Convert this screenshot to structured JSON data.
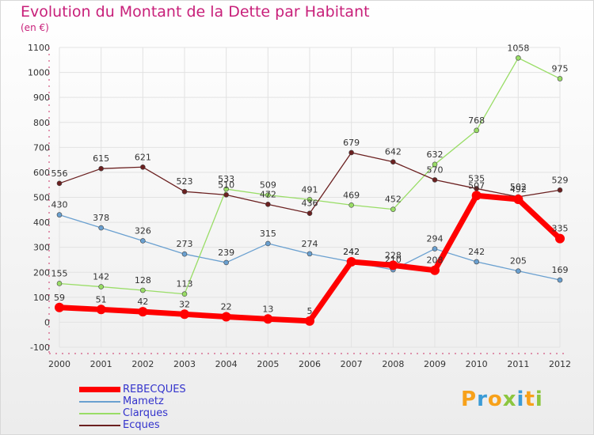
{
  "title": "Evolution du Montant de la Dette par Habitant",
  "subtitle": "(en €)",
  "logo_text": "Proxiti",
  "chart_data": {
    "type": "line",
    "title": "Evolution du Montant de la Dette par Habitant",
    "ylabel": "(en €)",
    "xlabel": "",
    "categories": [
      "2000",
      "2001",
      "2002",
      "2003",
      "2004",
      "2005",
      "2006",
      "2007",
      "2008",
      "2009",
      "2010",
      "2011",
      "2012"
    ],
    "ylim": [
      -100,
      1100
    ],
    "yticks": [
      -100,
      0,
      100,
      200,
      300,
      400,
      500,
      600,
      700,
      800,
      900,
      1000,
      1100
    ],
    "grid": true,
    "legend_position": "bottom-left",
    "series": [
      {
        "name": "REBECQUES",
        "color": "#ff0000",
        "values": [
          59,
          51,
          42,
          32,
          22,
          13,
          5,
          242,
          228,
          208,
          507,
          492,
          335
        ]
      },
      {
        "name": "Mametz",
        "color": "#6aa0d0",
        "values": [
          430,
          378,
          326,
          273,
          239,
          315,
          274,
          242,
          210,
          294,
          242,
          205,
          169
        ]
      },
      {
        "name": "Clarques",
        "color": "#99dd66",
        "values": [
          155,
          142,
          128,
          113,
          533,
          509,
          491,
          469,
          452,
          632,
          768,
          1058,
          975
        ]
      },
      {
        "name": "Ecques",
        "color": "#6b2020",
        "values": [
          556,
          615,
          621,
          523,
          510,
          472,
          436,
          679,
          642,
          570,
          535,
          502,
          529
        ]
      }
    ]
  }
}
